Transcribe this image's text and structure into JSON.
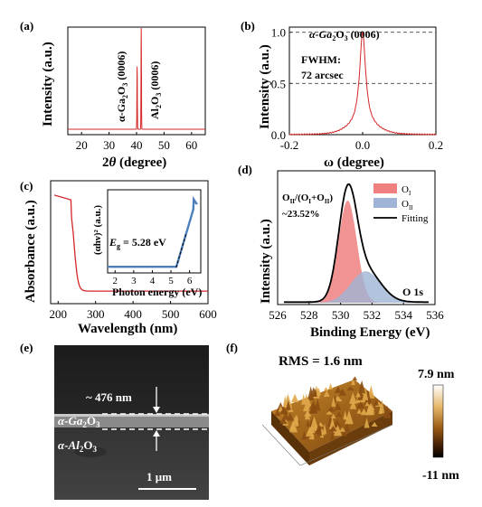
{
  "panels": {
    "a": "(a)",
    "b": "(b)",
    "c": "(c)",
    "d": "(d)",
    "e": "(e)",
    "f": "(f)"
  },
  "colors": {
    "red": "#d62728",
    "o1_fill": "#f08080",
    "o2_fill": "#9fb4d6",
    "blue_line": "#4e7fbd"
  },
  "chart_data": [
    {
      "id": "a",
      "type": "line",
      "xlabel_pre": "2",
      "xlabel_sym": "θ",
      "xlabel_post": " (degree)",
      "ylabel": "Intensity (a.u.)",
      "xlim": [
        15,
        65
      ],
      "xticks": [
        20,
        30,
        40,
        50,
        60
      ],
      "peaks": [
        {
          "x": 40.2,
          "height": 0.62,
          "label_pre": "α-Ga",
          "label_sub1": "2",
          "label_mid": "O",
          "label_sub2": "3",
          "label_post": " (0006)"
        },
        {
          "x": 41.7,
          "height": 1.0,
          "label_pre": "Al",
          "label_sub1": "2",
          "label_mid": "O",
          "label_sub2": "3",
          "label_post": " (0006)"
        }
      ]
    },
    {
      "id": "b",
      "type": "line",
      "title_pre": "α-Ga",
      "title_sub1": "2",
      "title_mid": "O",
      "title_sub2": "3",
      "title_post": " (0006)",
      "annotation_line1": "FWHM:",
      "annotation_line2": "72 arcsec",
      "xlabel": "ω (degree)",
      "ylabel": "Intensity (a.u.)",
      "xlim": [
        -0.2,
        0.2
      ],
      "ylim": [
        0,
        1.05
      ],
      "xticks": [
        "-0.2",
        "0.0",
        "0.2"
      ],
      "xtick_values": [
        -0.2,
        0.0,
        0.2
      ],
      "yticks": [
        "0.0",
        "0.5",
        "1.0"
      ],
      "ytick_values": [
        0.0,
        0.5,
        1.0
      ],
      "dashed_lines": [
        1.0,
        0.5
      ],
      "peak_center": 0.0,
      "peak_fwhm": 0.02
    },
    {
      "id": "c",
      "type": "line",
      "xlabel": "Wavelength (nm)",
      "ylabel": "Absorbance (a.u.)",
      "xlim": [
        180,
        600
      ],
      "xticks": [
        200,
        300,
        400,
        500,
        600
      ],
      "absorption_edge_nm": 235,
      "inset": {
        "xlabel": "Photon energy (eV)",
        "ylabel": "(αhν)² (a.u.)",
        "xlim": [
          1.6,
          6.6
        ],
        "xticks": [
          2,
          3,
          4,
          5,
          6
        ],
        "eg_label_pre": "E",
        "eg_label_sub": "g",
        "eg_label_post": " = 5.28 eV",
        "eg_value": 5.28
      }
    },
    {
      "id": "d",
      "type": "area",
      "xlabel": "Binding Energy (eV)",
      "ylabel": "Intensity (a.u.)",
      "xlim": [
        526,
        536
      ],
      "xticks": [
        526,
        528,
        530,
        532,
        534,
        536
      ],
      "ratio_line1_pre": "O",
      "ratio_line1_sub1": "II",
      "ratio_line1_mid": "/(O",
      "ratio_line1_sub2": "I",
      "ratio_line1_mid2": "+O",
      "ratio_line1_sub3": "II",
      "ratio_line1_post": ")",
      "ratio_value": "~23.52%",
      "peak_label": "O 1s",
      "legend": [
        {
          "name": "O",
          "sub": "I",
          "kind": "fill",
          "color": "#f08080"
        },
        {
          "name": "O",
          "sub": "II",
          "kind": "fill",
          "color": "#9fb4d6"
        },
        {
          "name": "Fitting",
          "sub": "",
          "kind": "line",
          "color": "#000000"
        }
      ],
      "components": [
        {
          "center": 530.45,
          "sigma": 0.58,
          "amplitude": 0.78
        },
        {
          "center": 531.6,
          "sigma": 0.95,
          "amplitude": 0.24
        }
      ]
    }
  ],
  "sem": {
    "thickness": "~ 476 nm",
    "layer1_pre": "α-Ga",
    "layer1_sub1": "2",
    "layer1_mid": "O",
    "layer1_sub2": "3",
    "layer2_pre": "α-Al",
    "layer2_sub1": "2",
    "layer2_mid": "O",
    "layer2_sub2": "3",
    "scale": "1 μm"
  },
  "afm": {
    "rms": "RMS = 1.6 nm",
    "max": "7.9 nm",
    "min": "-11 nm"
  }
}
